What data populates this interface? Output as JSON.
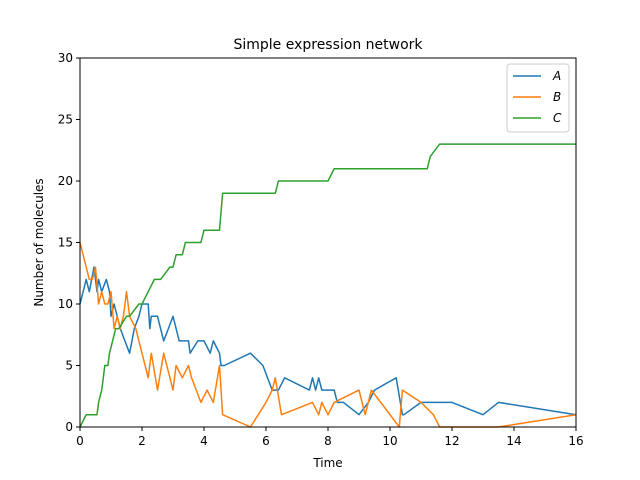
{
  "chart_data": {
    "type": "line",
    "title": "Simple expression network",
    "xlabel": "Time",
    "ylabel": "Number of molecules",
    "xlim": [
      0,
      16
    ],
    "ylim": [
      0,
      30
    ],
    "xticks": [
      0,
      2,
      4,
      6,
      8,
      10,
      12,
      14,
      16
    ],
    "yticks": [
      0,
      5,
      10,
      15,
      20,
      25,
      30
    ],
    "grid": false,
    "legend_position": "top-right",
    "series": [
      {
        "name": "A",
        "color": "#1f77b4",
        "x": [
          0,
          0.2,
          0.3,
          0.45,
          0.55,
          0.6,
          0.7,
          0.85,
          0.95,
          1.0,
          1.1,
          1.2,
          1.3,
          1.45,
          1.6,
          1.75,
          1.9,
          2.0,
          2.2,
          2.25,
          2.3,
          2.5,
          2.7,
          2.85,
          3.0,
          3.1,
          3.2,
          3.5,
          3.55,
          3.8,
          4.0,
          4.2,
          4.3,
          4.5,
          4.55,
          4.65,
          5.5,
          5.9,
          6.2,
          6.4,
          6.6,
          7.4,
          7.5,
          7.6,
          7.7,
          7.8,
          8.2,
          8.3,
          8.5,
          9.0,
          9.3,
          9.5,
          10.2,
          10.4,
          10.45,
          11.0,
          11.5,
          12.0,
          13.0,
          13.5,
          16.0
        ],
        "y": [
          10,
          12,
          11,
          13,
          11,
          12,
          11,
          12,
          11,
          9,
          10,
          9,
          8,
          7,
          6,
          8,
          9,
          10,
          10,
          8,
          9,
          9,
          7,
          8,
          9,
          8,
          7,
          7,
          6,
          7,
          7,
          6,
          7,
          6,
          5,
          5,
          6,
          5,
          3,
          3,
          4,
          3,
          4,
          3,
          4,
          3,
          3,
          2,
          2,
          1,
          2,
          3,
          4,
          1,
          1,
          2,
          2,
          2,
          1,
          2,
          1
        ]
      },
      {
        "name": "B",
        "color": "#ff7f0e",
        "x": [
          0,
          0.1,
          0.2,
          0.3,
          0.4,
          0.5,
          0.6,
          0.7,
          0.8,
          0.9,
          1.0,
          1.1,
          1.2,
          1.3,
          1.4,
          1.5,
          1.6,
          1.8,
          2.0,
          2.2,
          2.3,
          2.5,
          2.7,
          2.9,
          3.0,
          3.1,
          3.3,
          3.5,
          3.6,
          3.9,
          4.1,
          4.3,
          4.5,
          4.6,
          5.5,
          6.0,
          6.2,
          6.3,
          6.5,
          7.5,
          7.7,
          7.8,
          8.0,
          8.2,
          9.0,
          9.2,
          9.4,
          10.3,
          10.4,
          11.0,
          11.4,
          11.6,
          13.5,
          16.0
        ],
        "y": [
          15,
          14,
          13,
          12,
          12,
          13,
          10,
          11,
          10,
          10,
          11,
          8,
          9,
          8,
          9,
          11,
          9,
          8,
          6,
          4,
          6,
          3,
          6,
          4,
          3,
          5,
          4,
          5,
          4,
          2,
          3,
          2,
          5,
          1,
          0,
          2,
          3,
          4,
          1,
          2,
          1,
          2,
          1,
          2,
          3,
          1,
          3,
          0,
          3,
          2,
          1,
          0,
          0,
          1
        ]
      },
      {
        "name": "C",
        "color": "#2ca02c",
        "x": [
          0,
          0.2,
          0.55,
          0.6,
          0.7,
          0.75,
          0.8,
          0.9,
          0.95,
          1.05,
          1.15,
          1.25,
          1.5,
          1.6,
          1.9,
          2.0,
          2.2,
          2.4,
          2.6,
          2.9,
          3.0,
          3.1,
          3.3,
          3.4,
          3.6,
          3.9,
          4.0,
          4.5,
          4.6,
          6.3,
          6.4,
          7.9,
          8.0,
          8.2,
          11.2,
          11.3,
          11.6,
          16.0
        ],
        "y": [
          0,
          1,
          1,
          2,
          3,
          4,
          5,
          5,
          6,
          7,
          8,
          8,
          9,
          9,
          10,
          10,
          11,
          12,
          12,
          13,
          13,
          14,
          14,
          15,
          15,
          15,
          16,
          16,
          19,
          19,
          20,
          20,
          20,
          21,
          21,
          22,
          23,
          23
        ]
      }
    ]
  }
}
